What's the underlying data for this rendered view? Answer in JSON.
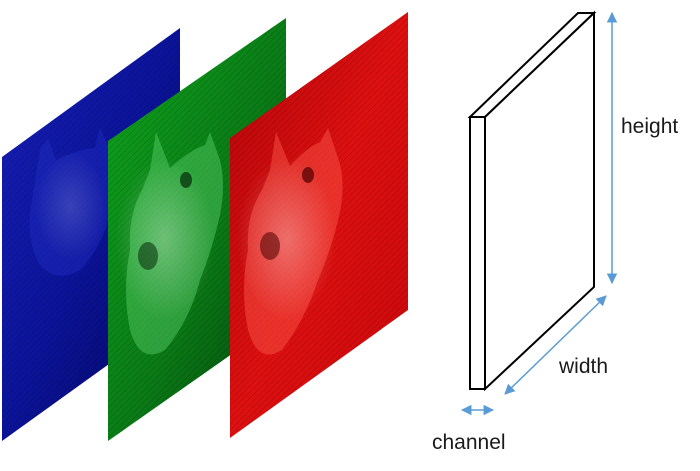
{
  "diagram": {
    "labels": {
      "height": "height",
      "width": "width",
      "channel": "channel"
    },
    "channels": [
      {
        "name": "blue",
        "color": "#0a12a8"
      },
      {
        "name": "green",
        "color": "#0f8a1c"
      },
      {
        "name": "red",
        "color": "#d2090c"
      }
    ],
    "arrow_color": "#5b9bd5",
    "box_color": "#000000"
  }
}
